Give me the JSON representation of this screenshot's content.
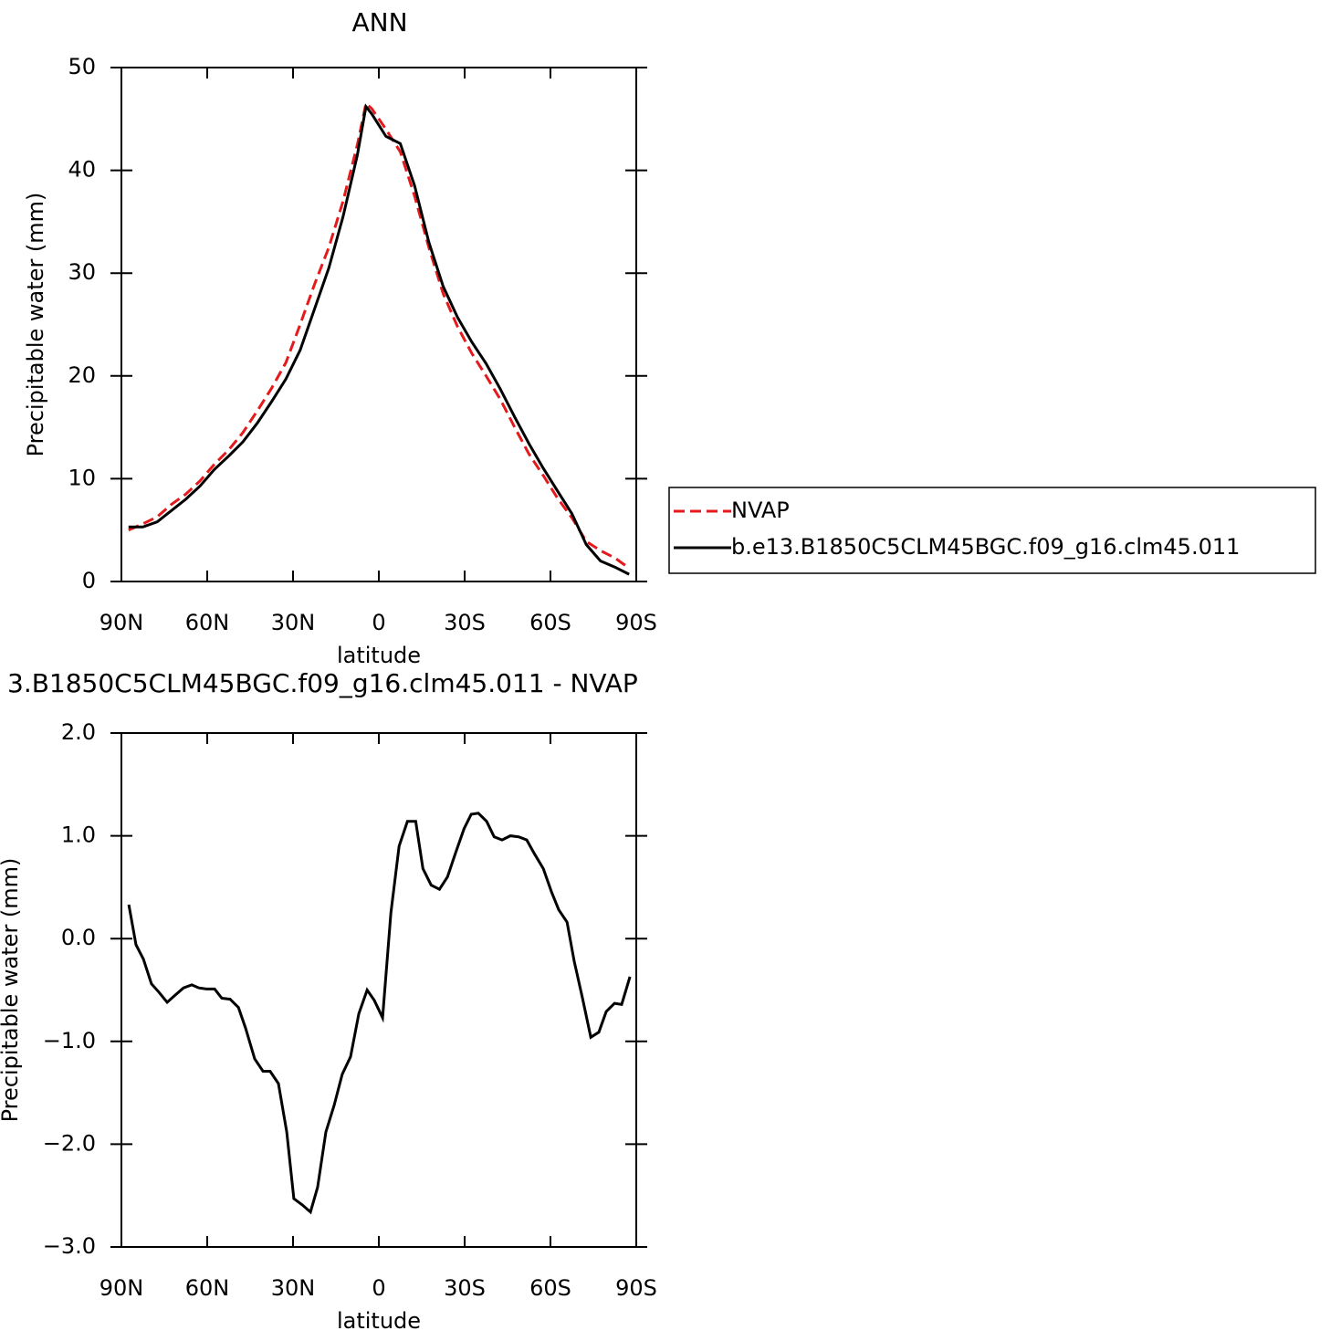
{
  "chart_data": [
    {
      "type": "line",
      "title": "ANN",
      "xlabel": "latitude",
      "ylabel": "Precipitable water (mm)",
      "x": [
        87.5,
        82.5,
        77.5,
        72.5,
        67.5,
        62.5,
        57.5,
        52.5,
        47.5,
        42.5,
        37.5,
        32.5,
        27.5,
        22.5,
        17.5,
        12.5,
        7.5,
        4.5,
        2.5,
        -2.5,
        -7.5,
        -12.5,
        -17.5,
        -22.5,
        -27.5,
        -32.5,
        -37.5,
        -42.5,
        -47.5,
        -52.5,
        -57.5,
        -62.5,
        -67.5,
        -72.5,
        -77.5,
        -82.5,
        -87.5
      ],
      "series": [
        {
          "name": "NVAP",
          "color": "#e41a1c",
          "dash": true,
          "values": [
            5.0,
            5.6,
            6.3,
            7.5,
            8.5,
            9.8,
            11.4,
            12.8,
            14.5,
            16.6,
            18.8,
            21.3,
            25.0,
            28.9,
            32.5,
            37.0,
            42.5,
            46.5,
            46.0,
            44.0,
            41.8,
            37.5,
            32.5,
            28.0,
            24.8,
            22.2,
            20.0,
            17.7,
            15.0,
            12.4,
            10.3,
            8.1,
            6.2,
            3.9,
            3.0,
            2.3,
            1.3
          ]
        },
        {
          "name": "b.e13.B1850C5CLM45BGC.f09_g16.clm45.011",
          "color": "#000000",
          "dash": false,
          "values": [
            5.3,
            5.3,
            5.8,
            6.9,
            8.0,
            9.3,
            10.9,
            12.2,
            13.6,
            15.4,
            17.5,
            19.7,
            22.5,
            26.5,
            30.5,
            35.5,
            41.5,
            46.2,
            45.5,
            43.3,
            42.6,
            38.5,
            33.0,
            28.7,
            25.7,
            23.3,
            21.2,
            18.7,
            16.0,
            13.4,
            11.0,
            8.8,
            6.6,
            3.6,
            2.0,
            1.4,
            0.7
          ]
        }
      ],
      "xlim": [
        90,
        -90
      ],
      "xticks": [
        {
          "value": 90,
          "label": "90N"
        },
        {
          "value": 60,
          "label": "60N"
        },
        {
          "value": 30,
          "label": "30N"
        },
        0,
        {
          "value": -30,
          "label": "30S"
        },
        {
          "value": -60,
          "label": "60S"
        },
        {
          "value": -90,
          "label": "90S"
        }
      ],
      "ylim": [
        0,
        50
      ],
      "yticks": [
        0,
        10,
        20,
        30,
        40,
        50
      ],
      "legend": "right"
    },
    {
      "type": "line",
      "title": "3.B1850C5CLM45BGC.f09_g16.clm45.011 - NVAP",
      "xlabel": "latitude",
      "ylabel": "Precipitable water (mm)",
      "x": [
        87.4,
        84.9,
        82.3,
        79.5,
        76.9,
        74.0,
        71.2,
        68.3,
        65.4,
        62.9,
        60.3,
        57.4,
        54.9,
        52.0,
        49.1,
        46.6,
        43.4,
        40.5,
        38.0,
        35.1,
        32.2,
        29.7,
        26.8,
        23.9,
        21.4,
        18.5,
        15.6,
        12.8,
        9.9,
        7.0,
        4.1,
        1.6,
        -1.3,
        -4.2,
        -7.1,
        -10.0,
        -12.9,
        -15.4,
        -18.3,
        -21.2,
        -24.0,
        -26.9,
        -29.8,
        -32.3,
        -34.8,
        -37.7,
        -40.3,
        -43.1,
        -46.0,
        -48.9,
        -51.7,
        -54.3,
        -57.5,
        -60.4,
        -62.9,
        -65.8,
        -68.3,
        -71.2,
        -74.1,
        -76.9,
        -79.5,
        -82.4,
        -84.9,
        -87.8
      ],
      "series": [
        {
          "color": "#000000",
          "dash": false,
          "values": [
            0.33,
            -0.06,
            -0.2,
            -0.44,
            -0.52,
            -0.62,
            -0.55,
            -0.48,
            -0.45,
            -0.48,
            -0.49,
            -0.49,
            -0.58,
            -0.59,
            -0.67,
            -0.87,
            -1.17,
            -1.29,
            -1.29,
            -1.41,
            -1.88,
            -2.53,
            -2.59,
            -2.66,
            -2.42,
            -1.88,
            -1.62,
            -1.32,
            -1.15,
            -0.73,
            -0.5,
            -0.6,
            -0.77,
            0.25,
            0.9,
            1.14,
            1.14,
            0.68,
            0.52,
            0.48,
            0.6,
            0.84,
            1.07,
            1.21,
            1.22,
            1.14,
            0.99,
            0.96,
            1.0,
            0.99,
            0.96,
            0.83,
            0.68,
            0.45,
            0.28,
            0.16,
            -0.22,
            -0.58,
            -0.96,
            -0.91,
            -0.71,
            -0.63,
            -0.64,
            -0.37
          ]
        }
      ],
      "xlim": [
        90,
        -90
      ],
      "xticks": [
        {
          "value": 90,
          "label": "90N"
        },
        {
          "value": 60,
          "label": "60N"
        },
        {
          "value": 30,
          "label": "30N"
        },
        0,
        {
          "value": -30,
          "label": "30S"
        },
        {
          "value": -60,
          "label": "60S"
        },
        {
          "value": -90,
          "label": "90S"
        }
      ],
      "ylim": [
        -3,
        2
      ],
      "yticks": [
        {
          "value": -3,
          "label": "−3.0"
        },
        {
          "value": -2,
          "label": "−2.0"
        },
        {
          "value": -1,
          "label": "−1.0"
        },
        {
          "value": 0,
          "label": "0.0"
        },
        {
          "value": 1,
          "label": "1.0"
        },
        {
          "value": 2,
          "label": "2.0"
        }
      ]
    }
  ]
}
